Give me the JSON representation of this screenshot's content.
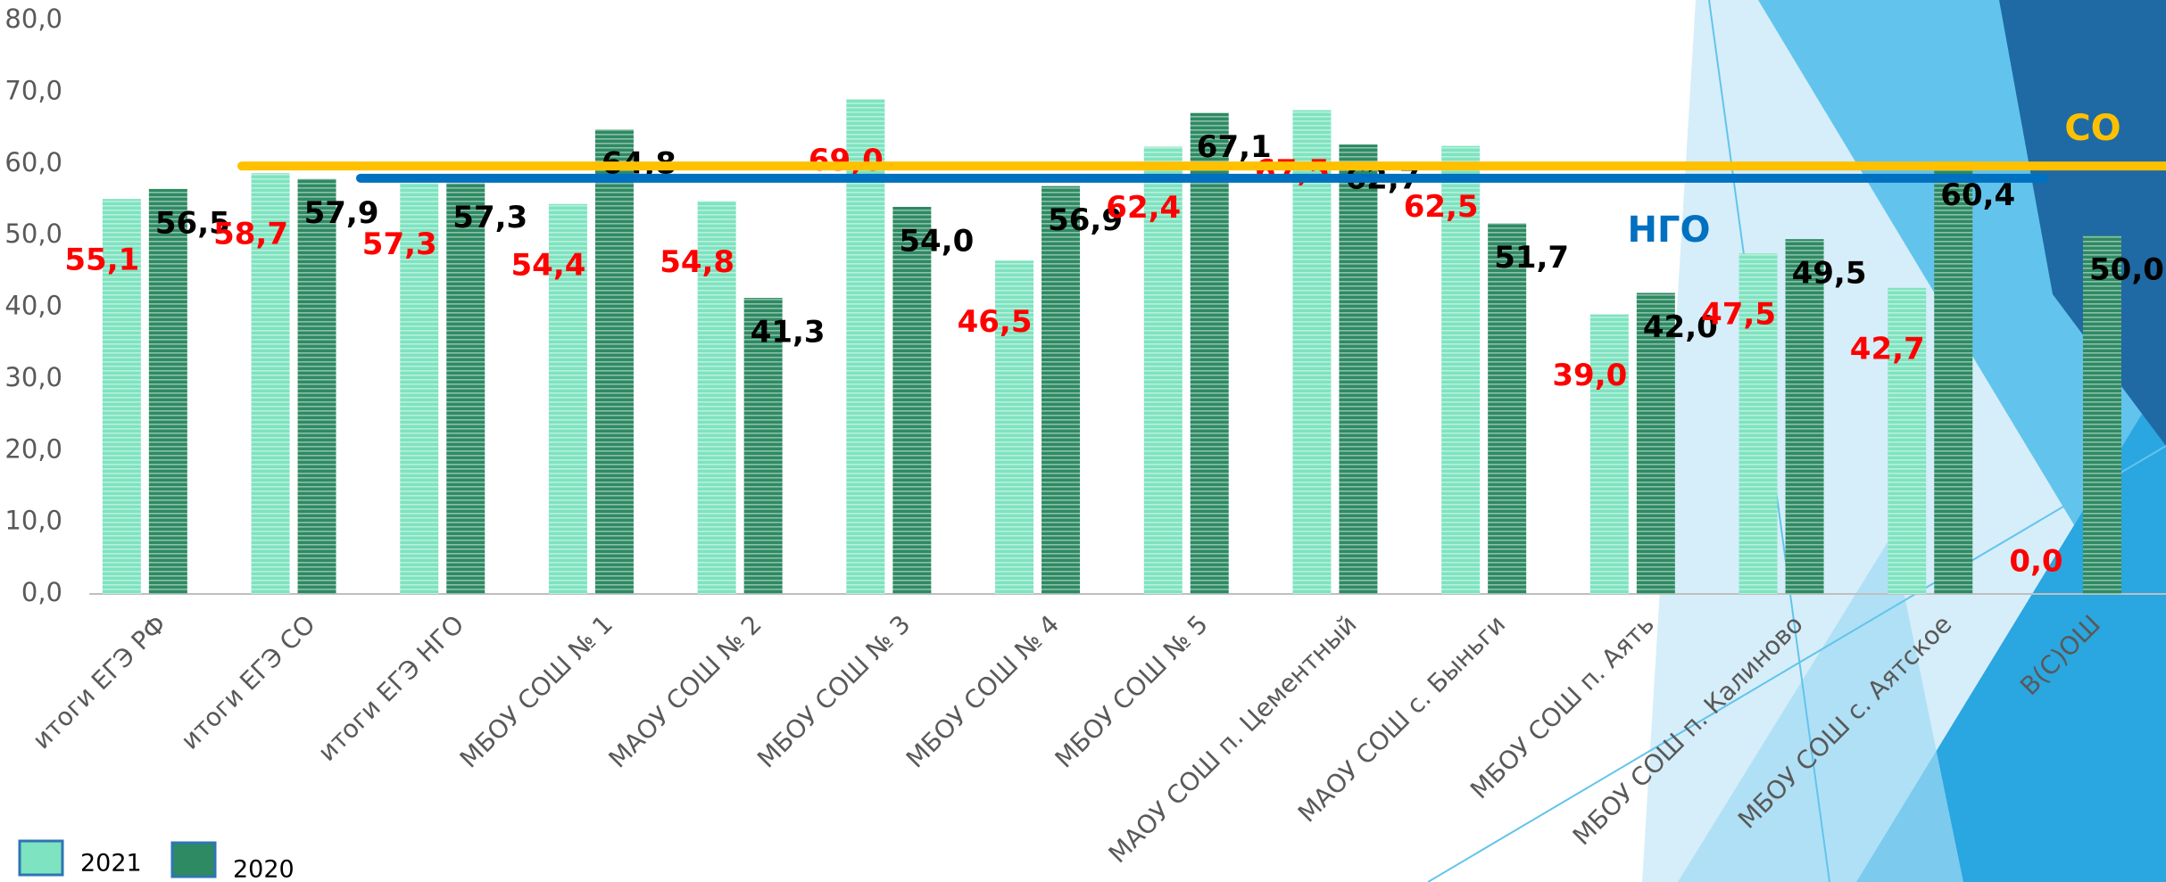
{
  "chart_data": {
    "type": "bar",
    "categories": [
      "итоги ЕГЭ РФ",
      "итоги ЕГЭ СО",
      "итоги ЕГЭ НГО",
      "МБОУ СОШ № 1",
      "МАОУ СОШ № 2",
      "МБОУ СОШ № 3",
      "МБОУ СОШ № 4",
      "МБОУ СОШ № 5",
      "МАОУ СОШ п. Цементный",
      "МАОУ СОШ с. Быньги",
      "МБОУ СОШ п. Аять",
      "МБОУ СОШ п. Калиново",
      "МБОУ СОШ с. Аятское",
      "В(С)ОШ"
    ],
    "series": [
      {
        "name": "2021",
        "color": "#7ee3c0",
        "label_color": "#ff0000",
        "values": [
          55.1,
          58.7,
          57.3,
          54.4,
          54.8,
          69.0,
          46.5,
          62.4,
          67.5,
          62.5,
          39.0,
          47.5,
          42.7,
          0.0
        ],
        "value_labels": [
          "55,1",
          "58,7",
          "57,3",
          "54,4",
          "54,8",
          "69,0",
          "46,5",
          "62,4",
          "67,5",
          "62,5",
          "39,0",
          "47,5",
          "42,7",
          "0,0"
        ]
      },
      {
        "name": "2020",
        "color": "#2e8a63",
        "label_color": "#000000",
        "values": [
          56.5,
          57.9,
          57.3,
          64.8,
          41.3,
          54.0,
          56.9,
          67.1,
          62.7,
          51.7,
          42.0,
          49.5,
          60.4,
          50.0
        ],
        "value_labels": [
          "56,5",
          "57,9",
          "57,3",
          "64,8",
          "41,3",
          "54,0",
          "56,9",
          "67,1",
          "62,7",
          "51,7",
          "42,0",
          "49,5",
          "60,4",
          "50,0"
        ]
      }
    ],
    "reference_lines": [
      {
        "name": "СО",
        "value": 59.7,
        "color": "#ffc000"
      },
      {
        "name": "НГО",
        "value": 58.0,
        "color": "#0070c0"
      }
    ],
    "ylim": [
      0,
      80
    ],
    "yticks": [
      {
        "value": 0,
        "label": "0,0"
      },
      {
        "value": 10,
        "label": "10,0"
      },
      {
        "value": 20,
        "label": "20,0"
      },
      {
        "value": 30,
        "label": "30,0"
      },
      {
        "value": 40,
        "label": "40,0"
      },
      {
        "value": 50,
        "label": "50,0"
      },
      {
        "value": 60,
        "label": "60,0"
      },
      {
        "value": 70,
        "label": "70,0"
      },
      {
        "value": 80,
        "label": "80,0"
      }
    ],
    "grid": false
  }
}
